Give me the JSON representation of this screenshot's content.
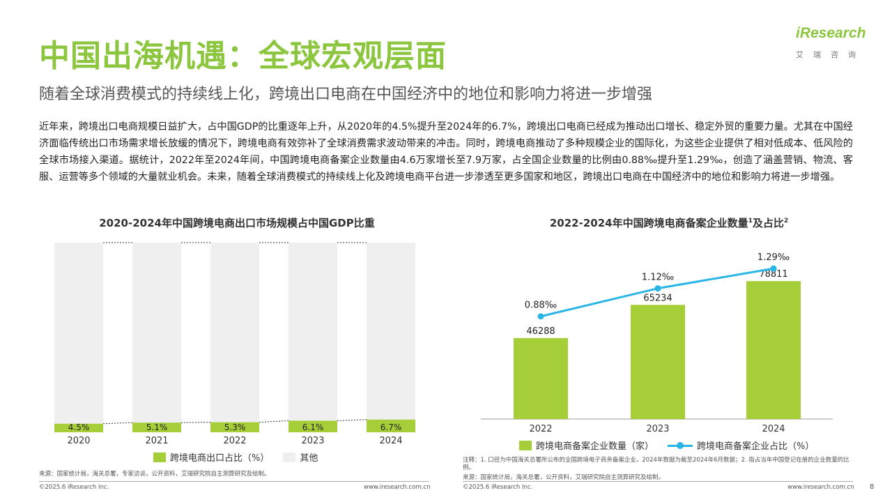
{
  "header": {
    "title": "中国出海机遇：全球宏观层面",
    "subtitle": "随着全球消费模式的持续线上化，跨境出口电商在中国经济中的地位和影响力将进一步增强",
    "logo_word": "iResearch",
    "logo_sub": "艾瑞咨询"
  },
  "intro": "近年来，跨境出口电商规模日益扩大，占中国GDP的比重逐年上升，从2020年的4.5%提升至2024年的6.7%，跨境出口电商已经成为推动出口增长、稳定外贸的重要力量。尤其在中国经济面临传统出口市场需求增长放缓的情况下，跨境电商有效弥补了全球消费需求波动带来的冲击。同时，跨境电商推动了多种规模企业的国际化，为这些企业提供了相对低成本、低风险的全球市场接入渠道。据统计，2022年至2024年间，中国跨境电商备案企业数量由4.6万家增长至7.9万家，占全国企业数量的比例由0.88‰提升至1.29‰，创造了涵盖营销、物流、客服、运营等多个领域的大量就业机会。未来，随着全球消费模式的持续线上化及跨境电商平台进一步渗透至更多国家和地区，跨境出口电商在中国经济中的地位和影响力将进一步增强。",
  "chart_data": [
    {
      "type": "bar",
      "stacked": true,
      "percent": true,
      "title": "2020-2024年中国跨境电商出口市场规模占中国GDP比重",
      "categories": [
        "2020",
        "2021",
        "2022",
        "2023",
        "2024"
      ],
      "series": [
        {
          "name": "跨境电商出口占比（%）",
          "values": [
            4.5,
            5.1,
            5.3,
            6.1,
            6.7
          ],
          "labels": [
            "4.5%",
            "5.1%",
            "5.3%",
            "6.1%",
            "6.7%"
          ],
          "color": "#a6ce39"
        },
        {
          "name": "其他",
          "values": [
            95.5,
            94.9,
            94.7,
            93.9,
            93.3
          ],
          "color": "#efefef"
        }
      ],
      "ylim": [
        0,
        100
      ],
      "legend": "bottom"
    },
    {
      "type": "bar",
      "title_main": "2022-2024年中国跨境电商备案企业数量",
      "title_sup1": "1",
      "title_mid": "及占比",
      "title_sup2": "2",
      "categories": [
        "2022",
        "2023",
        "2024"
      ],
      "series": [
        {
          "name": "跨境电商备案企业数量（家）",
          "type": "bar",
          "values": [
            46288,
            65234,
            78811
          ],
          "labels": [
            "46288",
            "65234",
            "78811"
          ],
          "color": "#a6ce39"
        },
        {
          "name": "跨境电商备案企业占比（%）",
          "type": "line",
          "values": [
            0.88,
            1.12,
            1.29
          ],
          "labels": [
            "0.88‰",
            "1.12‰",
            "1.29‰"
          ],
          "color": "#29b6e6"
        }
      ],
      "ylim": [
        0,
        100000
      ],
      "y2lim": [
        0,
        1.5
      ],
      "legend": "bottom"
    }
  ],
  "footer": {
    "source1": "来源：国家统计局，海关总署，专家访谈，公开资料，艾瑞研究院自主测算研究及绘制。",
    "note2": "注释：1. 口径为中国海关总署所公布的全国跨境电子商务备案企业，2024年数据为截至2024年6月数据；2. 指占当年中国登记在册的企业数量的比例。",
    "source2": "来源：国家统计局，海关总署，公开资料，艾瑞研究院自主测算研究及绘制。",
    "copyright": "©2025.6 iResearch Inc.",
    "url": "www.iresearch.com.cn",
    "page": "8"
  },
  "colors": {
    "accent": "#8cc63f",
    "bar": "#a6ce39",
    "other": "#efefef",
    "line": "#29b6e6"
  }
}
